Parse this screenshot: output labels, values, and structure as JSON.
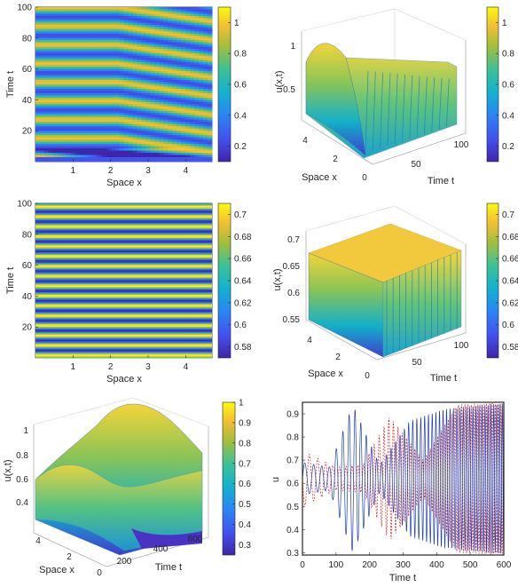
{
  "colors": {
    "parula_low": "#3e26a8",
    "parula_mid": "#13b5c0",
    "parula_high": "#f9fb0e",
    "series_blue": "#1f3fb4",
    "series_red": "#d62020"
  },
  "chart_data": [
    {
      "type": "heatmap",
      "xlabel": "Space x",
      "ylabel": "Time t",
      "xlim": [
        0,
        4.7
      ],
      "ylim": [
        0,
        100
      ],
      "xticks": [
        "1",
        "2",
        "3",
        "4"
      ],
      "yticks": [
        "20",
        "40",
        "60",
        "80",
        "100"
      ],
      "colorbar": {
        "range": [
          0.1,
          1.1
        ],
        "ticks": [
          "0.2",
          "0.4",
          "0.6",
          "0.8",
          "1"
        ]
      }
    },
    {
      "type": "surface",
      "xlabel": "Time t",
      "ylabel": "Space x",
      "zlabel": "u(x,t)",
      "time_ticks": [
        "50",
        "100"
      ],
      "space_ticks": [
        "0",
        "2",
        "4"
      ],
      "z_ticks": [
        "0.5",
        "1"
      ],
      "colorbar": {
        "range": [
          0.1,
          1.1
        ],
        "ticks": [
          "0.2",
          "0.4",
          "0.6",
          "0.8",
          "1"
        ]
      }
    },
    {
      "type": "heatmap",
      "xlabel": "Space x",
      "ylabel": "Time t",
      "xlim": [
        0,
        4.7
      ],
      "ylim": [
        0,
        100
      ],
      "xticks": [
        "1",
        "2",
        "3",
        "4"
      ],
      "yticks": [
        "20",
        "40",
        "60",
        "80",
        "100"
      ],
      "colorbar": {
        "range": [
          0.57,
          0.71
        ],
        "ticks": [
          "0.58",
          "0.6",
          "0.62",
          "0.64",
          "0.66",
          "0.68",
          "0.7"
        ]
      }
    },
    {
      "type": "surface",
      "xlabel": "Time t",
      "ylabel": "Space x",
      "zlabel": "u(x,t)",
      "time_ticks": [
        "50",
        "100"
      ],
      "space_ticks": [
        "0",
        "2",
        "4"
      ],
      "z_ticks": [
        "0.55",
        "0.6",
        "0.65",
        "0.7"
      ],
      "colorbar": {
        "range": [
          0.57,
          0.71
        ],
        "ticks": [
          "0.58",
          "0.6",
          "0.62",
          "0.64",
          "0.66",
          "0.68",
          "0.7"
        ]
      }
    },
    {
      "type": "surface",
      "xlabel": "Time t",
      "ylabel": "Space x",
      "zlabel": "u(x,t)",
      "time_ticks": [
        "200",
        "400",
        "600"
      ],
      "space_ticks": [
        "0",
        "2",
        "4"
      ],
      "z_ticks": [
        "0.4",
        "0.6",
        "0.8",
        "1"
      ],
      "colorbar": {
        "range": [
          0.25,
          1.0
        ],
        "ticks": [
          "0.3",
          "0.4",
          "0.5",
          "0.6",
          "0.7",
          "0.8",
          "0.9",
          "1"
        ]
      }
    },
    {
      "type": "line",
      "xlabel": "Time t",
      "ylabel": "u",
      "xlim": [
        0,
        600
      ],
      "ylim": [
        0.29,
        0.95
      ],
      "xticks": [
        "0",
        "100",
        "200",
        "300",
        "400",
        "500",
        "600"
      ],
      "yticks": [
        "0.3",
        "0.4",
        "0.5",
        "0.6",
        "0.7",
        "0.8",
        "0.9"
      ],
      "series": [
        {
          "color": "solid blue",
          "mean": 0.62,
          "amplitude_envelope": [
            [
              0,
              0.07
            ],
            [
              80,
              0.05
            ],
            [
              150,
              0.32
            ],
            [
              230,
              0.06
            ],
            [
              320,
              0.25
            ],
            [
              420,
              0.3
            ],
            [
              600,
              0.33
            ]
          ]
        },
        {
          "color": "dashed red",
          "mean": 0.62,
          "amplitude_envelope": [
            [
              0,
              0.12
            ],
            [
              100,
              0.05
            ],
            [
              180,
              0.06
            ],
            [
              260,
              0.27
            ],
            [
              360,
              0.08
            ],
            [
              460,
              0.32
            ],
            [
              600,
              0.33
            ]
          ]
        }
      ]
    }
  ]
}
